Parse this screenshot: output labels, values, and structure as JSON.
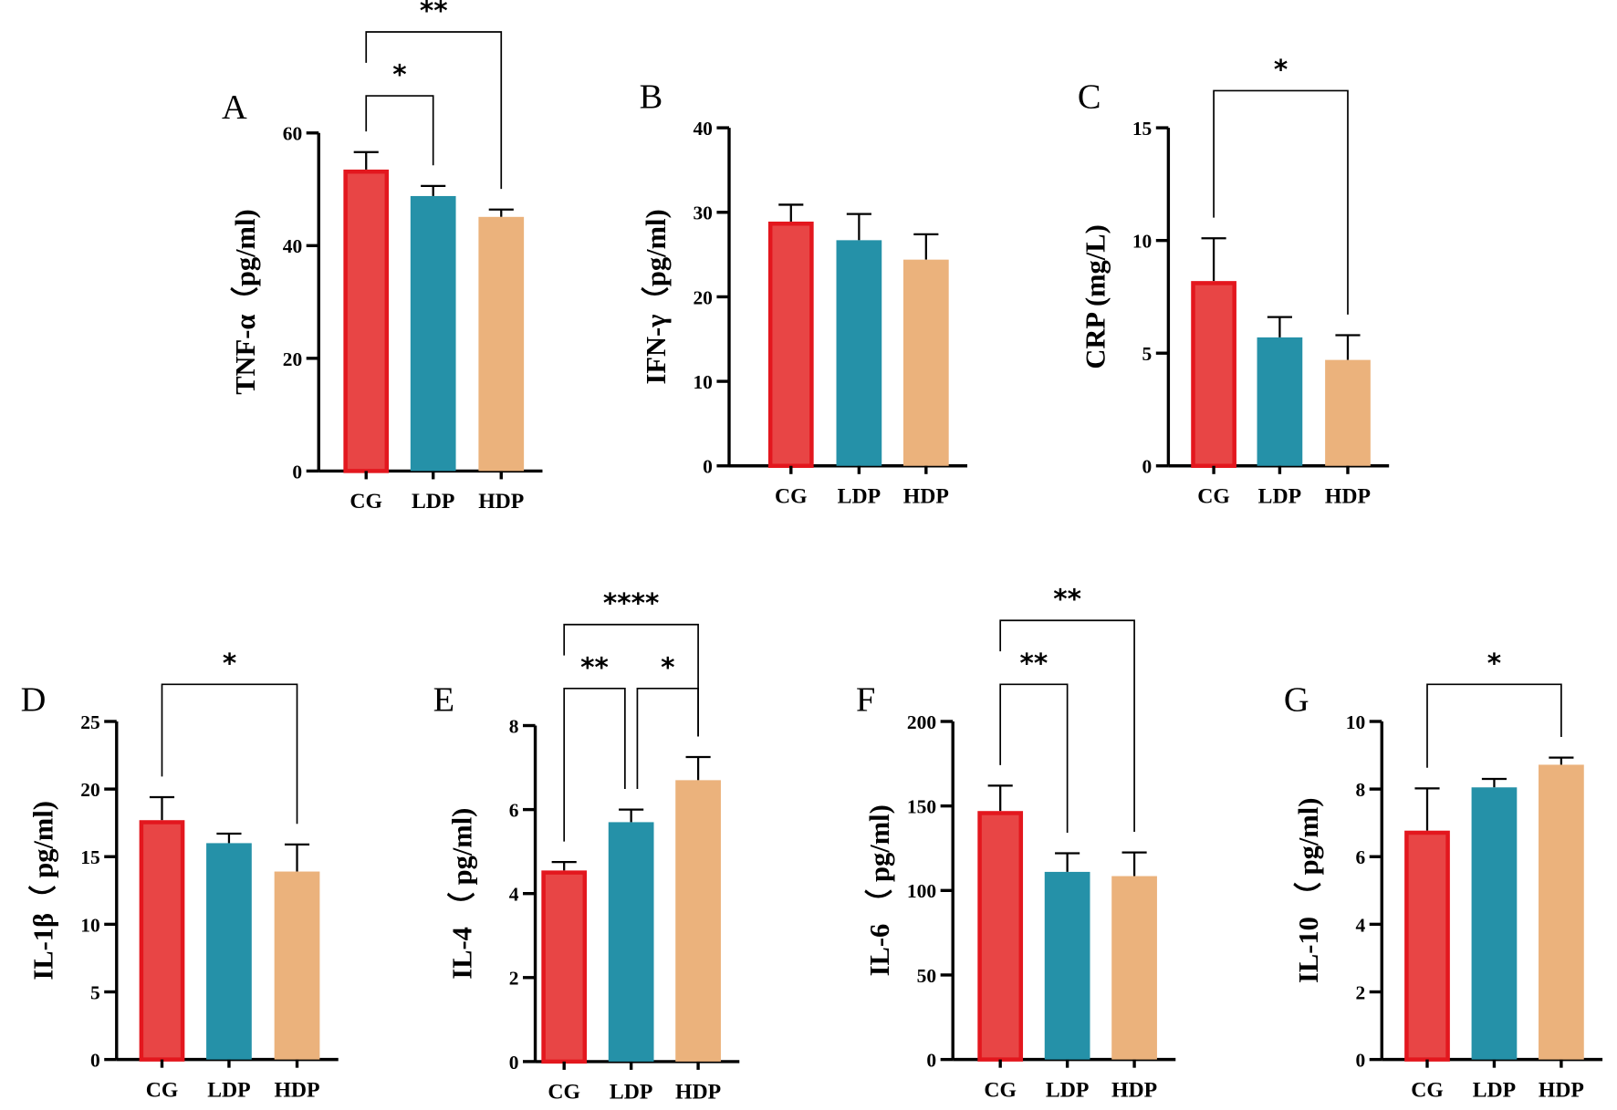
{
  "colors": {
    "CG": "#e84545",
    "CG_border": "#e3171e",
    "LDP": "#2591a8",
    "HDP": "#ebb27c",
    "axis": "#000000"
  },
  "chart_data": [
    {
      "type": "bar",
      "panel": "A",
      "ylabel": "TNF-α（pg/ml)",
      "categories": [
        "CG",
        "LDP",
        "HDP"
      ],
      "values": [
        53.5,
        48.8,
        45.1
      ],
      "errors": [
        3.1,
        1.8,
        1.3
      ],
      "ylim": [
        0,
        60
      ],
      "yticks": [
        0,
        20,
        40,
        60
      ],
      "significance": [
        {
          "from": 0,
          "to": 1,
          "label": "*",
          "level": 0
        },
        {
          "from": 0,
          "to": 2,
          "label": "**",
          "level": 1
        }
      ]
    },
    {
      "type": "bar",
      "panel": "B",
      "ylabel": "IFN-γ（pg/ml)",
      "categories": [
        "CG",
        "LDP",
        "HDP"
      ],
      "values": [
        28.9,
        26.7,
        24.4
      ],
      "errors": [
        2.0,
        3.1,
        3.0
      ],
      "ylim": [
        0,
        40
      ],
      "yticks": [
        0,
        10,
        20,
        30,
        40
      ],
      "significance": []
    },
    {
      "type": "bar",
      "panel": "C",
      "ylabel": "CRP (mg/L)",
      "categories": [
        "CG",
        "LDP",
        "HDP"
      ],
      "values": [
        8.2,
        5.7,
        4.7
      ],
      "errors": [
        1.9,
        0.9,
        1.1
      ],
      "ylim": [
        0,
        15
      ],
      "yticks": [
        0,
        5,
        10,
        15
      ],
      "significance": [
        {
          "from": 0,
          "to": 2,
          "label": "*",
          "level": 0
        }
      ]
    },
    {
      "type": "bar",
      "panel": "D",
      "ylabel": "IL-1β（ pg/ml)",
      "categories": [
        "CG",
        "LDP",
        "HDP"
      ],
      "values": [
        17.7,
        16.0,
        13.9
      ],
      "errors": [
        1.7,
        0.7,
        2.0
      ],
      "ylim": [
        0,
        25
      ],
      "yticks": [
        0,
        5,
        10,
        15,
        20,
        25
      ],
      "significance": [
        {
          "from": 0,
          "to": 2,
          "label": "*",
          "level": 0
        }
      ]
    },
    {
      "type": "bar",
      "panel": "E",
      "ylabel": "IL-4 （ pg/ml)",
      "categories": [
        "CG",
        "LDP",
        "HDP"
      ],
      "values": [
        4.55,
        5.7,
        6.7
      ],
      "errors": [
        0.2,
        0.3,
        0.55
      ],
      "ylim": [
        0,
        8
      ],
      "yticks": [
        0,
        2,
        4,
        6,
        8
      ],
      "significance": [
        {
          "from": 0,
          "to": 1,
          "label": "**",
          "level": 0
        },
        {
          "from": 1,
          "to": 2,
          "label": "*",
          "level": 0
        },
        {
          "from": 0,
          "to": 2,
          "label": "****",
          "level": 1
        }
      ]
    },
    {
      "type": "bar",
      "panel": "F",
      "ylabel": "IL-6 （ pg/ml)",
      "categories": [
        "CG",
        "LDP",
        "HDP"
      ],
      "values": [
        147,
        111,
        108.5
      ],
      "errors": [
        15,
        11,
        14
      ],
      "ylim": [
        0,
        200
      ],
      "yticks": [
        0,
        50,
        100,
        150,
        200
      ],
      "significance": [
        {
          "from": 0,
          "to": 1,
          "label": "**",
          "level": 0
        },
        {
          "from": 0,
          "to": 2,
          "label": "**",
          "level": 1
        }
      ]
    },
    {
      "type": "bar",
      "panel": "G",
      "ylabel": "IL-10 （ pg/ml)",
      "categories": [
        "CG",
        "LDP",
        "HDP"
      ],
      "values": [
        6.77,
        8.05,
        8.72
      ],
      "errors": [
        1.25,
        0.25,
        0.21
      ],
      "ylim": [
        0,
        10
      ],
      "yticks": [
        0,
        2,
        4,
        6,
        8,
        10
      ],
      "significance": [
        {
          "from": 0,
          "to": 2,
          "label": "*",
          "level": 0
        }
      ]
    }
  ]
}
